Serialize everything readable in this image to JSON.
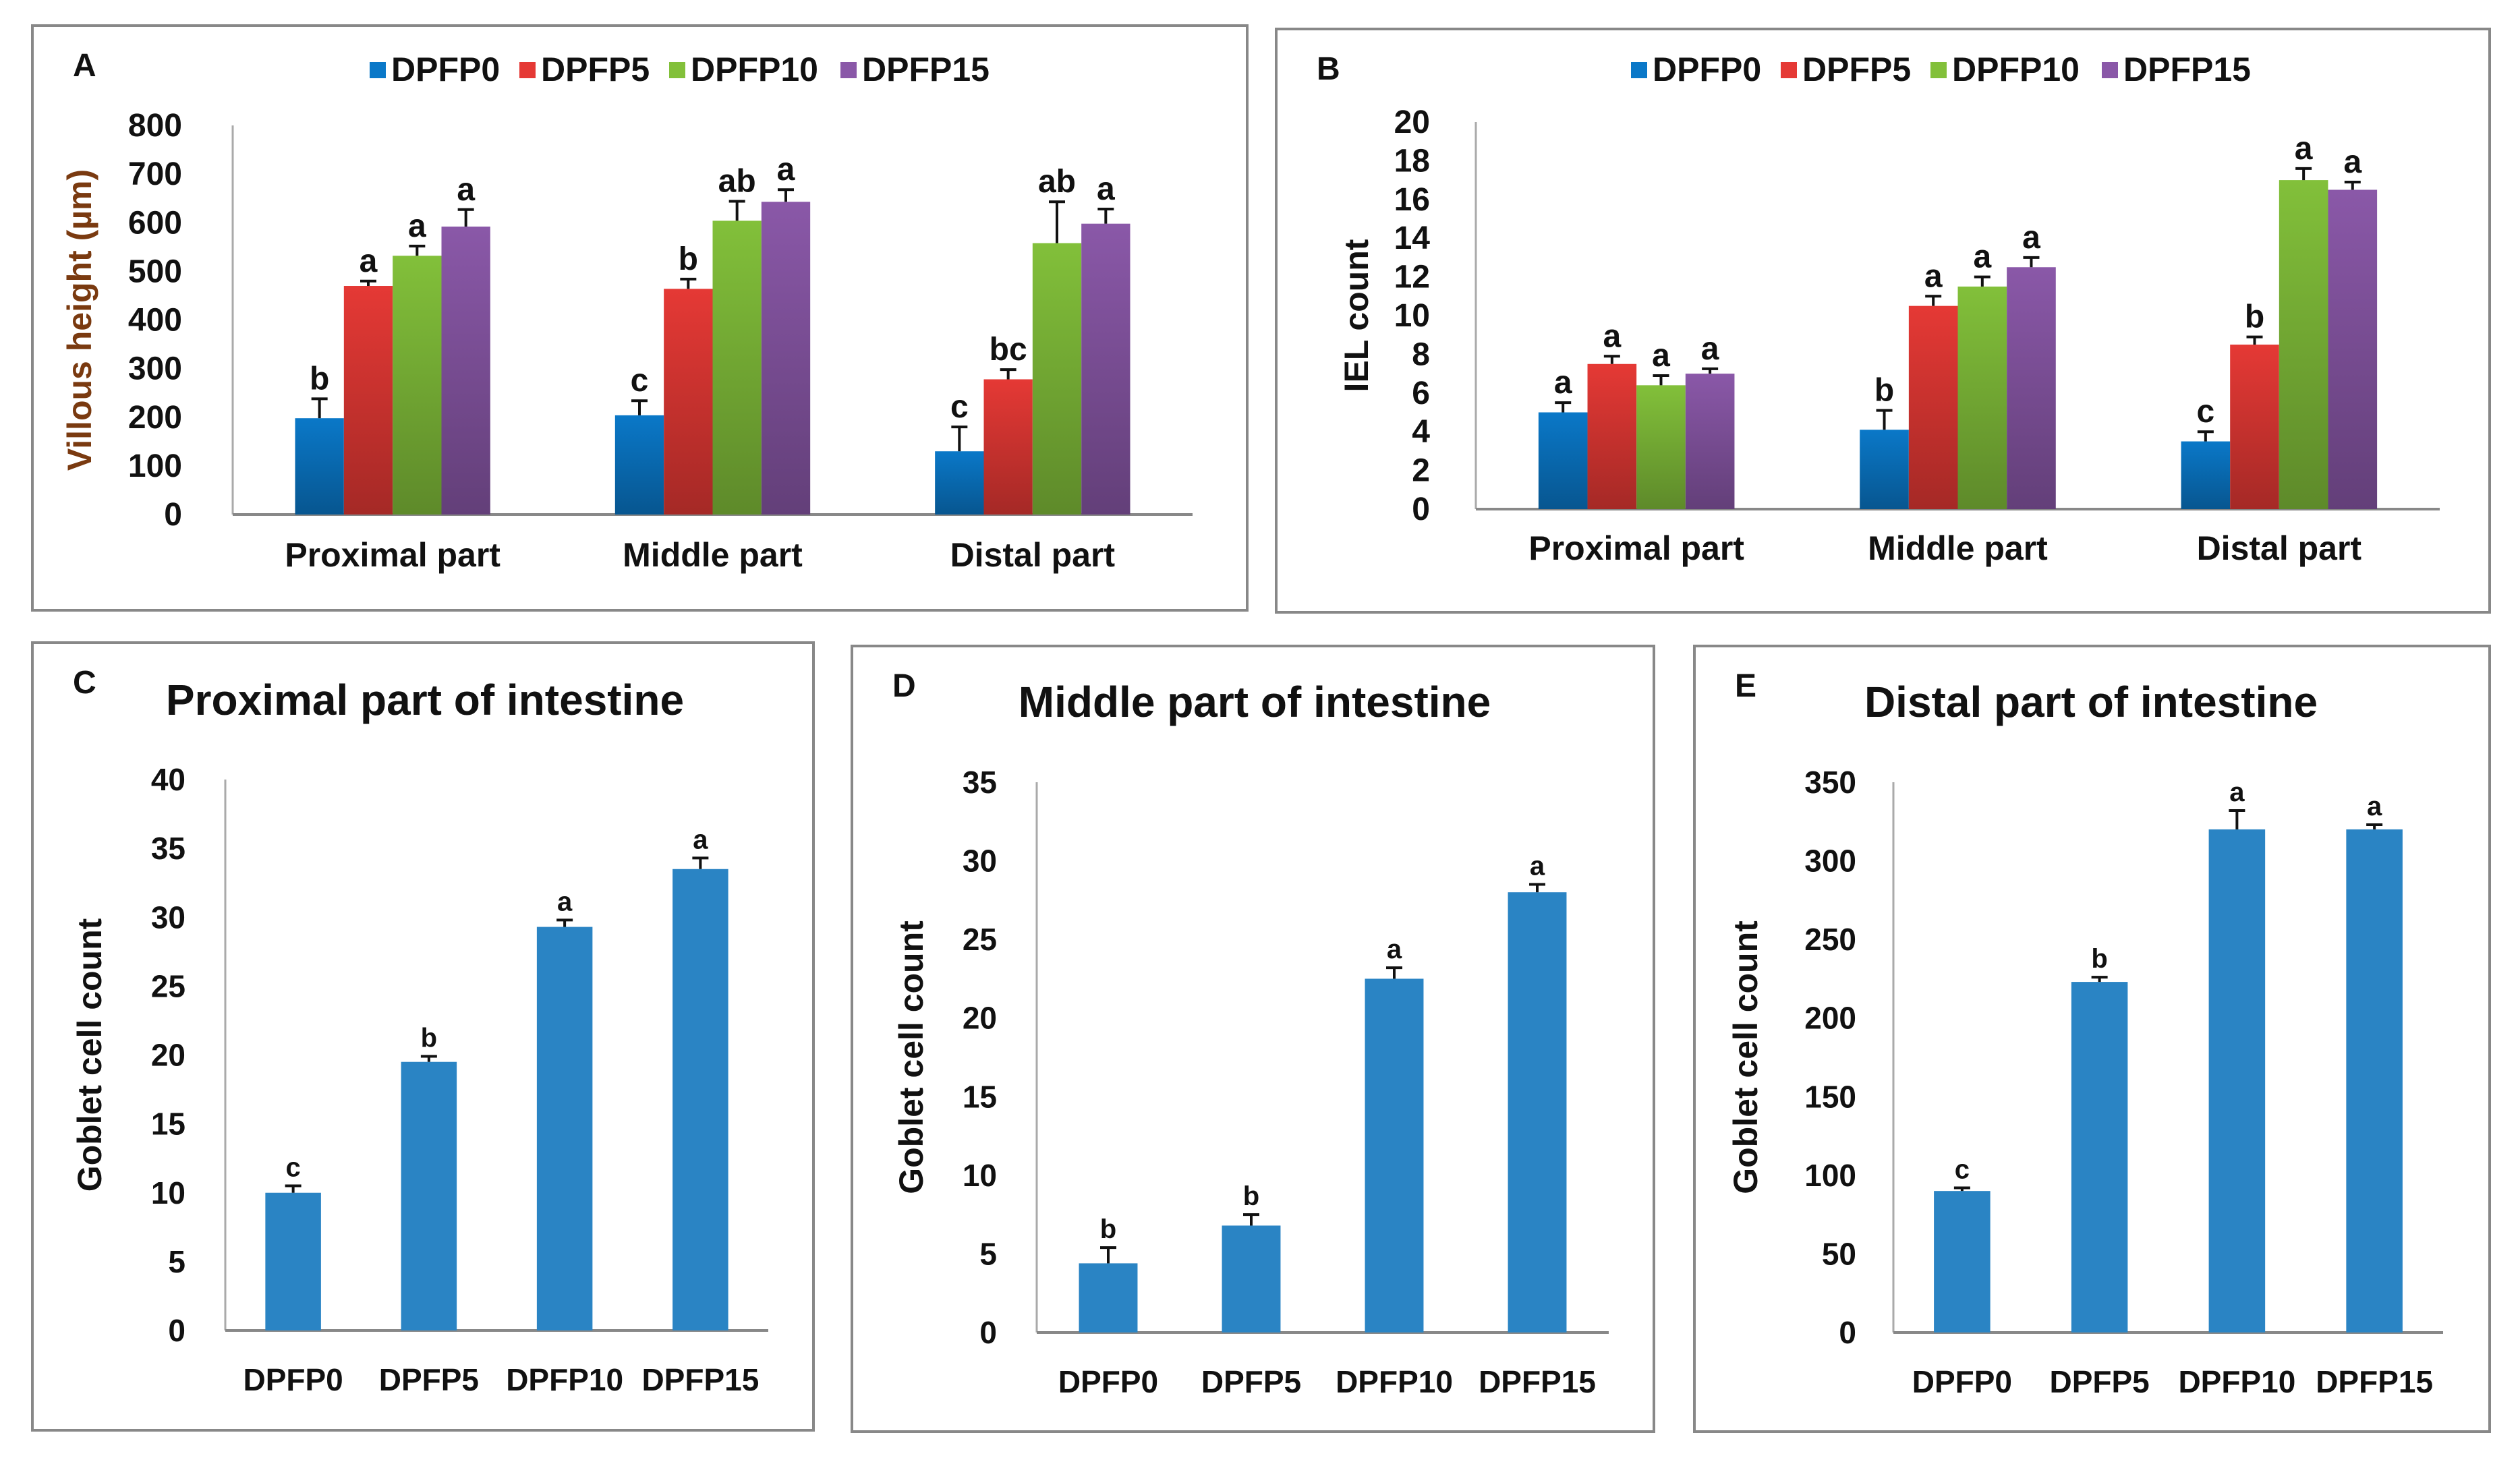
{
  "colors": {
    "DPFP0": "#0a78c8",
    "DPFP5": "#e53935",
    "DPFP10": "#82c03a",
    "DPFP15": "#8a58a8",
    "single": "#2a84c4",
    "ylabelA": "#7a3a10"
  },
  "chart_data": [
    {
      "panel": "A",
      "type": "bar",
      "title": "",
      "ylabel": "Villous height (µm)",
      "ylim": [
        0,
        800
      ],
      "yticks": [
        0,
        100,
        200,
        300,
        400,
        500,
        600,
        700,
        800
      ],
      "categories": [
        "Proximal part",
        "Middle part",
        "Distal part"
      ],
      "legend": {
        "placement": "top"
      },
      "series": [
        {
          "name": "DPFP0",
          "values": [
            198,
            204,
            130
          ],
          "errors": [
            40,
            30,
            50
          ],
          "letters": [
            "b",
            "c",
            "c"
          ]
        },
        {
          "name": "DPFP5",
          "values": [
            470,
            464,
            278
          ],
          "errors": [
            10,
            20,
            20
          ],
          "letters": [
            "a",
            "b",
            "bc"
          ]
        },
        {
          "name": "DPFP10",
          "values": [
            532,
            604,
            558
          ],
          "errors": [
            20,
            40,
            85
          ],
          "letters": [
            "a",
            "ab",
            "ab"
          ]
        },
        {
          "name": "DPFP15",
          "values": [
            592,
            643,
            598
          ],
          "errors": [
            35,
            25,
            30
          ],
          "letters": [
            "a",
            "a",
            "a"
          ]
        }
      ]
    },
    {
      "panel": "B",
      "type": "bar",
      "title": "",
      "ylabel": "IEL count",
      "ylim": [
        0,
        20
      ],
      "yticks": [
        0,
        2,
        4,
        6,
        8,
        10,
        12,
        14,
        16,
        18,
        20
      ],
      "categories": [
        "Proximal part",
        "Middle part",
        "Distal part"
      ],
      "legend": {
        "placement": "top"
      },
      "series": [
        {
          "name": "DPFP0",
          "values": [
            5.0,
            4.1,
            3.5
          ],
          "errors": [
            0.5,
            1.0,
            0.5
          ],
          "letters": [
            "a",
            "b",
            "c"
          ]
        },
        {
          "name": "DPFP5",
          "values": [
            7.5,
            10.5,
            8.5
          ],
          "errors": [
            0.4,
            0.5,
            0.4
          ],
          "letters": [
            "a",
            "a",
            "b"
          ]
        },
        {
          "name": "DPFP10",
          "values": [
            6.4,
            11.5,
            17.0
          ],
          "errors": [
            0.5,
            0.5,
            0.6
          ],
          "letters": [
            "a",
            "a",
            "a"
          ]
        },
        {
          "name": "DPFP15",
          "values": [
            7.0,
            12.5,
            16.5
          ],
          "errors": [
            0.25,
            0.5,
            0.4
          ],
          "letters": [
            "a",
            "a",
            "a"
          ]
        }
      ]
    },
    {
      "panel": "C",
      "type": "bar",
      "title": "Proximal part of intestine",
      "ylabel": "Goblet cell count",
      "ylim": [
        0,
        40
      ],
      "yticks": [
        0,
        5,
        10,
        15,
        20,
        25,
        30,
        35,
        40
      ],
      "categories": [
        "DPFP0",
        "DPFP5",
        "DPFP10",
        "DPFP15"
      ],
      "series": [
        {
          "name": "Goblet cell count",
          "values": [
            10.0,
            19.5,
            29.3,
            33.5
          ],
          "errors": [
            0.5,
            0.4,
            0.5,
            0.8
          ],
          "letters": [
            "c",
            "b",
            "a",
            "a"
          ]
        }
      ]
    },
    {
      "panel": "D",
      "type": "bar",
      "title": "Middle part of intestine",
      "ylabel": "Goblet cell count",
      "ylim": [
        0,
        35
      ],
      "yticks": [
        0,
        5,
        10,
        15,
        20,
        25,
        30,
        35
      ],
      "categories": [
        "DPFP0",
        "DPFP5",
        "DPFP10",
        "DPFP15"
      ],
      "series": [
        {
          "name": "Goblet cell count",
          "values": [
            4.4,
            6.8,
            22.5,
            28.0
          ],
          "errors": [
            1.0,
            0.7,
            0.7,
            0.5
          ],
          "letters": [
            "b",
            "b",
            "a",
            "a"
          ]
        }
      ]
    },
    {
      "panel": "E",
      "type": "bar",
      "title": "Distal part of intestine",
      "ylabel": "Goblet cell count",
      "ylim": [
        0,
        350
      ],
      "yticks": [
        0,
        50,
        100,
        150,
        200,
        250,
        300,
        350
      ],
      "categories": [
        "DPFP0",
        "DPFP5",
        "DPFP10",
        "DPFP15"
      ],
      "series": [
        {
          "name": "Goblet cell count",
          "values": [
            90,
            223,
            320,
            320
          ],
          "errors": [
            2,
            3,
            12,
            3
          ],
          "letters": [
            "c",
            "b",
            "a",
            "a"
          ]
        }
      ]
    }
  ]
}
